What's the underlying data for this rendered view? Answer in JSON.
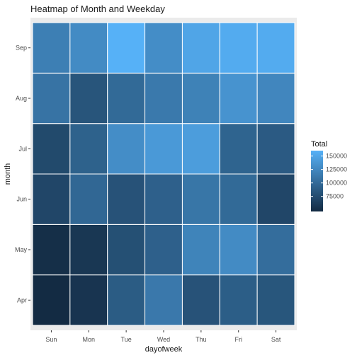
{
  "chart_data": {
    "type": "heatmap",
    "title": "Heatmap of Month and Weekday",
    "xlabel": "dayofweek",
    "ylabel": "month",
    "x_categories": [
      "Sun",
      "Mon",
      "Tue",
      "Wed",
      "Thu",
      "Fri",
      "Sat"
    ],
    "y_categories": [
      "Apr",
      "May",
      "Jun",
      "Jul",
      "Aug",
      "Sep"
    ],
    "values": [
      [
        47000,
        55000,
        88000,
        112000,
        80000,
        90000,
        83000
      ],
      [
        50000,
        57000,
        78000,
        92000,
        122000,
        128000,
        103000
      ],
      [
        70000,
        98000,
        80000,
        92000,
        110000,
        100000,
        70000
      ],
      [
        73000,
        93000,
        130000,
        140000,
        143000,
        95000,
        87000
      ],
      [
        108000,
        82000,
        100000,
        113000,
        120000,
        135000,
        124000
      ],
      [
        118000,
        128000,
        160000,
        130000,
        150000,
        155000,
        155000
      ]
    ],
    "legend": {
      "title": "Total",
      "position": "right",
      "ticks": [
        75000,
        100000,
        125000,
        150000
      ],
      "tick_labels": [
        "75000",
        "100000",
        "125000",
        "150000"
      ],
      "min": 47000,
      "max": 160000,
      "low_color": "#132B43",
      "high_color": "#56B1F7"
    },
    "grid": true
  }
}
